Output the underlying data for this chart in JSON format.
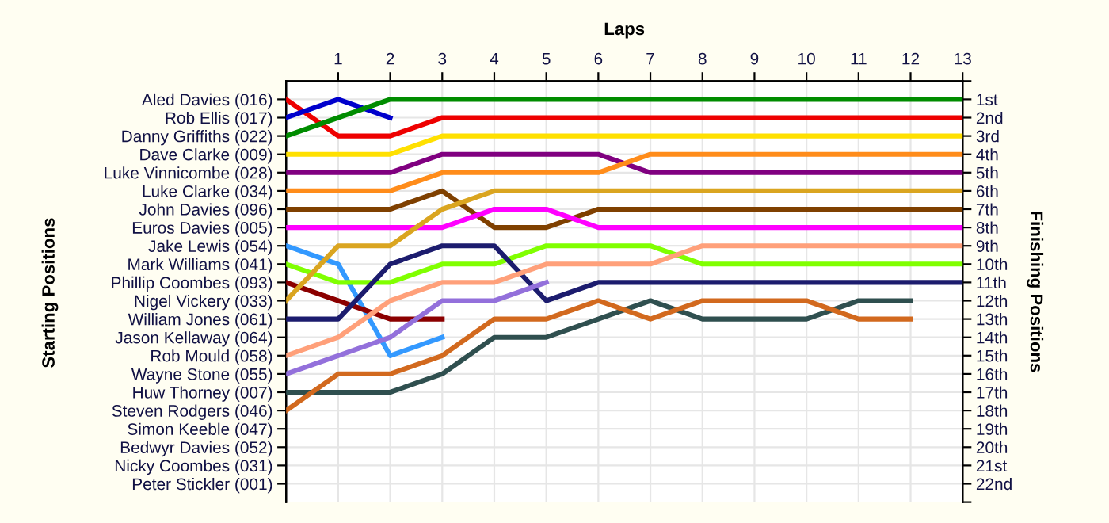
{
  "chart_data": {
    "type": "line",
    "xlabel": "Laps",
    "annotations": [
      "Starting Positions"
    ],
    "y2label": "Finishing Positions",
    "x": [
      0,
      1,
      2,
      3,
      4,
      5,
      6,
      7,
      8,
      9,
      10,
      11,
      12,
      13
    ],
    "xlim": [
      0,
      13
    ],
    "xticks": [
      1,
      2,
      3,
      4,
      5,
      6,
      7,
      8,
      9,
      10,
      11,
      12,
      13
    ],
    "y_categories": [
      "Aled Davies (016)",
      "Rob Ellis (017)",
      "Danny Griffiths (022)",
      "Dave Clarke (009)",
      "Luke Vinnicombe (028)",
      "Luke Clarke (034)",
      "John Davies (096)",
      "Euros Davies (005)",
      "Jake Lewis (054)",
      "Mark Williams (041)",
      "Phillip Coombes (093)",
      "Nigel Vickery (033)",
      "William Jones (061)",
      "Jason Kellaway (064)",
      "Rob Mould (058)",
      "Wayne Stone (055)",
      "Huw Thorney (007)",
      "Steven Rodgers (046)",
      "Simon Keeble (047)",
      "Bedwyr Davies (052)",
      "Nicky Coombes (031)",
      "Peter Stickler (001)"
    ],
    "y2lim": [
      23,
      0
    ],
    "y2ticks": [
      {
        "value": 0,
        "label": null
      },
      {
        "value": 1,
        "label": "1st"
      },
      {
        "value": 2,
        "label": "2nd"
      },
      {
        "value": 3,
        "label": "3rd"
      },
      {
        "value": 4,
        "label": "4th"
      },
      {
        "value": 5,
        "label": "5th"
      },
      {
        "value": 6,
        "label": "6th"
      },
      {
        "value": 7,
        "label": "7th"
      },
      {
        "value": 8,
        "label": "8th"
      },
      {
        "value": 9,
        "label": "9th"
      },
      {
        "value": 10,
        "label": "10th"
      },
      {
        "value": 11,
        "label": "11th"
      },
      {
        "value": 12,
        "label": "12th"
      },
      {
        "value": 13,
        "label": "13th"
      },
      {
        "value": 14,
        "label": "14th"
      },
      {
        "value": 15,
        "label": "15th"
      },
      {
        "value": 16,
        "label": "16th"
      },
      {
        "value": 17,
        "label": "17th"
      },
      {
        "value": 18,
        "label": "18th"
      },
      {
        "value": 19,
        "label": "19th"
      },
      {
        "value": 20,
        "label": "20th"
      },
      {
        "value": 21,
        "label": "21st"
      },
      {
        "value": 22,
        "label": "22nd"
      },
      {
        "value": 23,
        "label": null
      }
    ],
    "grid": true,
    "legend": false,
    "marker": "none",
    "line_style": "solid",
    "series": [
      {
        "axis": "y2",
        "color": "#ee0000",
        "values": [
          1,
          3,
          3,
          2,
          2,
          2,
          2,
          2,
          2,
          2,
          2,
          2,
          2,
          2
        ]
      },
      {
        "axis": "y2",
        "color": "#0000cc",
        "values": [
          2,
          1,
          2,
          null,
          null,
          null,
          null,
          null,
          null,
          null,
          null,
          null,
          null,
          null
        ]
      },
      {
        "axis": "y2",
        "color": "#008c00",
        "values": [
          3,
          2,
          1,
          1,
          1,
          1,
          1,
          1,
          1,
          1,
          1,
          1,
          1,
          1
        ]
      },
      {
        "axis": "y2",
        "color": "#ffe000",
        "values": [
          4,
          4,
          4,
          3,
          3,
          3,
          3,
          3,
          3,
          3,
          3,
          3,
          3,
          3
        ]
      },
      {
        "axis": "y2",
        "color": "#800080",
        "values": [
          5,
          5,
          5,
          4,
          4,
          4,
          4,
          5,
          5,
          5,
          5,
          5,
          5,
          5
        ]
      },
      {
        "axis": "y2",
        "color": "#ff8c1a",
        "values": [
          6,
          6,
          6,
          5,
          5,
          5,
          5,
          4,
          4,
          4,
          4,
          4,
          4,
          4
        ]
      },
      {
        "axis": "y2",
        "color": "#7f4000",
        "values": [
          7,
          7,
          7,
          6,
          8,
          8,
          7,
          7,
          7,
          7,
          7,
          7,
          7,
          7
        ]
      },
      {
        "axis": "y2",
        "color": "#ff00ff",
        "values": [
          8,
          8,
          8,
          8,
          7,
          7,
          8,
          8,
          8,
          8,
          8,
          8,
          8,
          8
        ]
      },
      {
        "axis": "y2",
        "color": "#3399ff",
        "values": [
          9,
          10,
          15,
          14,
          null,
          null,
          null,
          null,
          null,
          null,
          null,
          null,
          null,
          null
        ]
      },
      {
        "axis": "y2",
        "color": "#80ff00",
        "values": [
          10,
          11,
          11,
          10,
          10,
          9,
          9,
          9,
          10,
          10,
          10,
          10,
          10,
          10
        ]
      },
      {
        "axis": "y2",
        "color": "#8b0000",
        "values": [
          11,
          12,
          13,
          13,
          null,
          null,
          null,
          null,
          null,
          null,
          null,
          null,
          null,
          null
        ]
      },
      {
        "axis": "y2",
        "color": "#daa520",
        "values": [
          12,
          9,
          9,
          7,
          6,
          6,
          6,
          6,
          6,
          6,
          6,
          6,
          6,
          6
        ]
      },
      {
        "axis": "y2",
        "color": "#1c1c6e",
        "values": [
          13,
          13,
          10,
          9,
          9,
          12,
          11,
          11,
          11,
          11,
          11,
          11,
          11,
          11
        ]
      },
      {
        "axis": "y2",
        "color": "#ffa07a",
        "values": [
          15,
          14,
          12,
          11,
          11,
          10,
          10,
          10,
          9,
          9,
          9,
          9,
          9,
          9
        ]
      },
      {
        "axis": "y2",
        "color": "#9370db",
        "values": [
          16,
          15,
          14,
          12,
          12,
          11,
          null,
          null,
          null,
          null,
          null,
          null,
          null,
          null
        ]
      },
      {
        "axis": "y2",
        "color": "#2f4f4f",
        "values": [
          17,
          17,
          17,
          16,
          14,
          14,
          13,
          12,
          13,
          13,
          13,
          12,
          12,
          null
        ]
      },
      {
        "axis": "y2",
        "color": "#d2691e",
        "values": [
          18,
          16,
          16,
          15,
          13,
          13,
          12,
          13,
          12,
          12,
          12,
          13,
          13,
          null
        ]
      }
    ]
  }
}
